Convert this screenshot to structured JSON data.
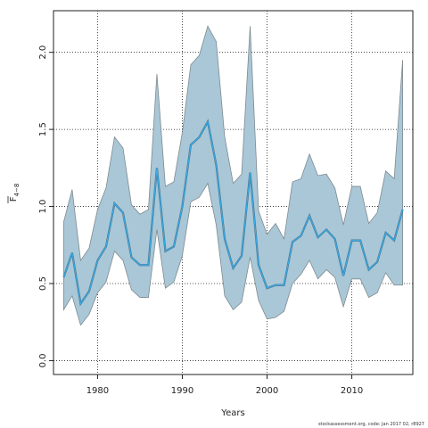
{
  "chart_data": {
    "type": "area",
    "title": "",
    "xlabel": "Years",
    "ylabel_main": "F",
    "ylabel_sub": "4−8",
    "xlim": [
      1974.8,
      2017.2
    ],
    "ylim": [
      -0.09,
      2.27
    ],
    "x_ticks": [
      1980,
      1990,
      2000,
      2010
    ],
    "y_ticks": [
      0.0,
      0.5,
      1.0,
      1.5,
      2.0
    ],
    "y_tick_labels": [
      "0.0",
      "0.5",
      "1.0",
      "1.5",
      "2.0"
    ],
    "grid": true,
    "x": [
      1976,
      1977,
      1978,
      1979,
      1980,
      1981,
      1982,
      1983,
      1984,
      1985,
      1986,
      1987,
      1988,
      1989,
      1990,
      1991,
      1992,
      1993,
      1994,
      1995,
      1996,
      1997,
      1998,
      1999,
      2000,
      2001,
      2002,
      2003,
      2004,
      2005,
      2006,
      2007,
      2008,
      2009,
      2010,
      2011,
      2012,
      2013,
      2014,
      2015,
      2016
    ],
    "series": [
      {
        "values": [
          0.54,
          0.7,
          0.37,
          0.45,
          0.65,
          0.74,
          1.02,
          0.96,
          0.67,
          0.62,
          0.62,
          1.25,
          0.71,
          0.74,
          1.0,
          1.4,
          1.45,
          1.55,
          1.27,
          0.79,
          0.6,
          0.68,
          1.22,
          0.62,
          0.47,
          0.49,
          0.49,
          0.77,
          0.81,
          0.94,
          0.8,
          0.85,
          0.79,
          0.55,
          0.78,
          0.78,
          0.59,
          0.64,
          0.83,
          0.78,
          0.98
        ],
        "lower": [
          0.33,
          0.42,
          0.23,
          0.3,
          0.44,
          0.51,
          0.71,
          0.65,
          0.46,
          0.41,
          0.41,
          0.85,
          0.47,
          0.51,
          0.68,
          1.03,
          1.06,
          1.15,
          0.88,
          0.42,
          0.33,
          0.38,
          0.67,
          0.39,
          0.27,
          0.28,
          0.32,
          0.5,
          0.56,
          0.65,
          0.53,
          0.59,
          0.54,
          0.35,
          0.53,
          0.53,
          0.41,
          0.44,
          0.57,
          0.49,
          0.49
        ],
        "upper": [
          0.9,
          1.11,
          0.65,
          0.73,
          0.98,
          1.12,
          1.45,
          1.38,
          1.01,
          0.95,
          0.98,
          1.86,
          1.13,
          1.16,
          1.48,
          1.92,
          1.98,
          2.17,
          2.07,
          1.45,
          1.15,
          1.21,
          2.17,
          0.97,
          0.82,
          0.89,
          0.79,
          1.16,
          1.18,
          1.34,
          1.2,
          1.21,
          1.12,
          0.88,
          1.13,
          1.13,
          0.89,
          0.96,
          1.23,
          1.18,
          1.95
        ]
      }
    ],
    "colors": {
      "band": "#a9c7d6",
      "band_edge": "#7f8a91",
      "median": "#4a7896",
      "estimate": "#33b5f5",
      "grid": "#222222"
    }
  },
  "footer": "stockassessment.org, code: Jan 2017 02, r8927"
}
